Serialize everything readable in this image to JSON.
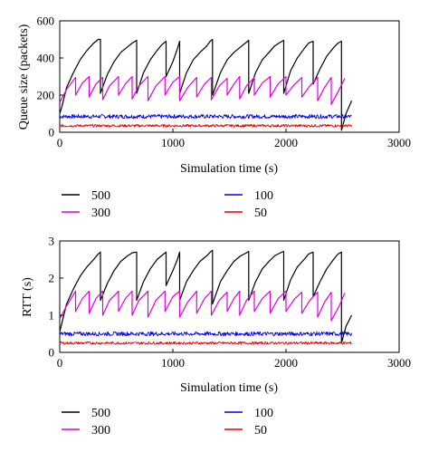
{
  "chart_data": [
    {
      "type": "line",
      "title": "",
      "xlabel": "Simulation time (s)",
      "ylabel": "Queue size (packets)",
      "xlim": [
        0,
        3000
      ],
      "ylim": [
        0,
        600
      ],
      "xticks": [
        "0",
        "1000",
        "2000",
        "3000"
      ],
      "yticks": [
        "0",
        "200",
        "400",
        "600"
      ],
      "grid": false,
      "legend_placement": "below",
      "series": [
        {
          "name": "500",
          "color": "#000000",
          "x": [
            0,
            20,
            60,
            120,
            180,
            240,
            300,
            340,
            360,
            360,
            420,
            480,
            540,
            600,
            640,
            680,
            680,
            740,
            800,
            860,
            900,
            940,
            940,
            1000,
            1040,
            1060,
            1060,
            1120,
            1180,
            1240,
            1300,
            1330,
            1350,
            1350,
            1420,
            1480,
            1540,
            1600,
            1650,
            1670,
            1670,
            1730,
            1790,
            1850,
            1900,
            1950,
            1980,
            1980,
            2040,
            2100,
            2160,
            2200,
            2240,
            2240,
            2300,
            2360,
            2420,
            2460,
            2490,
            2490,
            2530,
            2580
          ],
          "y": [
            100,
            140,
            240,
            320,
            390,
            440,
            480,
            500,
            500,
            210,
            310,
            380,
            430,
            460,
            480,
            495,
            210,
            320,
            390,
            440,
            470,
            490,
            300,
            380,
            450,
            490,
            210,
            320,
            390,
            430,
            465,
            490,
            500,
            200,
            320,
            390,
            430,
            460,
            485,
            495,
            210,
            320,
            390,
            430,
            465,
            485,
            495,
            210,
            330,
            400,
            450,
            480,
            490,
            260,
            340,
            410,
            455,
            480,
            490,
            10,
            100,
            170
          ]
        },
        {
          "name": "300",
          "color": "#e000e0",
          "x": [
            0,
            60,
            140,
            140,
            200,
            260,
            260,
            320,
            380,
            380,
            440,
            520,
            520,
            580,
            640,
            640,
            700,
            780,
            780,
            850,
            930,
            930,
            1000,
            1060,
            1060,
            1130,
            1210,
            1210,
            1280,
            1340,
            1340,
            1410,
            1480,
            1480,
            1540,
            1590,
            1590,
            1650,
            1720,
            1720,
            1790,
            1860,
            1860,
            1930,
            2000,
            2000,
            2070,
            2140,
            2140,
            2210,
            2280,
            2280,
            2340,
            2400,
            2400,
            2470,
            2520
          ],
          "y": [
            160,
            230,
            295,
            200,
            265,
            300,
            190,
            260,
            295,
            175,
            250,
            300,
            200,
            260,
            300,
            180,
            250,
            300,
            170,
            250,
            300,
            200,
            270,
            300,
            170,
            240,
            295,
            190,
            260,
            295,
            175,
            250,
            290,
            200,
            260,
            300,
            180,
            250,
            295,
            200,
            265,
            300,
            190,
            260,
            300,
            200,
            255,
            295,
            190,
            250,
            295,
            170,
            240,
            295,
            150,
            230,
            290
          ]
        },
        {
          "name": "100",
          "color": "#0000ee",
          "x": [
            0,
            2580
          ],
          "y": [
            85,
            85
          ]
        },
        {
          "name": "50",
          "color": "#ee0000",
          "x": [
            0,
            2580
          ],
          "y": [
            35,
            35
          ]
        }
      ]
    },
    {
      "type": "line",
      "title": "",
      "xlabel": "Simulation time (s)",
      "ylabel": "RTT (s)",
      "xlim": [
        0,
        3000
      ],
      "ylim": [
        0,
        3
      ],
      "xticks": [
        "0",
        "1000",
        "2000",
        "3000"
      ],
      "yticks": [
        "0",
        "1",
        "2",
        "3"
      ],
      "grid": false,
      "legend_placement": "below",
      "series": [
        {
          "name": "500",
          "color": "#000000",
          "x": [
            0,
            20,
            60,
            120,
            180,
            240,
            300,
            340,
            360,
            360,
            420,
            480,
            540,
            600,
            640,
            680,
            680,
            740,
            800,
            860,
            900,
            940,
            940,
            1000,
            1040,
            1060,
            1060,
            1120,
            1180,
            1240,
            1300,
            1330,
            1350,
            1350,
            1420,
            1480,
            1540,
            1600,
            1650,
            1670,
            1670,
            1730,
            1790,
            1850,
            1900,
            1950,
            1980,
            1980,
            2040,
            2100,
            2160,
            2200,
            2240,
            2240,
            2300,
            2360,
            2420,
            2460,
            2490,
            2490,
            2530,
            2580
          ],
          "y": [
            0.55,
            0.8,
            1.3,
            1.7,
            2.05,
            2.3,
            2.5,
            2.65,
            2.7,
            1.4,
            1.85,
            2.2,
            2.45,
            2.6,
            2.68,
            2.7,
            1.4,
            1.9,
            2.25,
            2.5,
            2.6,
            2.7,
            1.8,
            2.2,
            2.5,
            2.7,
            1.4,
            1.9,
            2.2,
            2.45,
            2.6,
            2.7,
            2.75,
            1.3,
            1.9,
            2.2,
            2.45,
            2.6,
            2.68,
            2.72,
            1.4,
            1.9,
            2.25,
            2.45,
            2.6,
            2.68,
            2.72,
            1.4,
            1.95,
            2.3,
            2.5,
            2.65,
            2.7,
            1.5,
            1.9,
            2.25,
            2.5,
            2.65,
            2.7,
            0.25,
            0.7,
            1.0
          ]
        },
        {
          "name": "300",
          "color": "#e000e0",
          "x": [
            0,
            60,
            140,
            140,
            200,
            260,
            260,
            320,
            380,
            380,
            440,
            520,
            520,
            580,
            640,
            640,
            700,
            780,
            780,
            850,
            930,
            930,
            1000,
            1060,
            1060,
            1130,
            1210,
            1210,
            1280,
            1340,
            1340,
            1410,
            1480,
            1480,
            1540,
            1590,
            1590,
            1650,
            1720,
            1720,
            1790,
            1860,
            1860,
            1930,
            2000,
            2000,
            2070,
            2140,
            2140,
            2210,
            2280,
            2280,
            2340,
            2400,
            2400,
            2470,
            2520
          ],
          "y": [
            0.9,
            1.25,
            1.65,
            1.1,
            1.45,
            1.65,
            1.05,
            1.45,
            1.65,
            1.0,
            1.4,
            1.65,
            1.1,
            1.45,
            1.65,
            1.0,
            1.4,
            1.65,
            0.95,
            1.4,
            1.65,
            1.1,
            1.5,
            1.65,
            0.95,
            1.35,
            1.65,
            1.05,
            1.45,
            1.65,
            1.0,
            1.4,
            1.62,
            1.1,
            1.45,
            1.65,
            1.0,
            1.4,
            1.65,
            1.1,
            1.45,
            1.65,
            1.05,
            1.45,
            1.65,
            1.1,
            1.42,
            1.62,
            1.05,
            1.4,
            1.62,
            0.95,
            1.35,
            1.62,
            0.85,
            1.25,
            1.6
          ]
        },
        {
          "name": "100",
          "color": "#0000ee",
          "x": [
            0,
            2580
          ],
          "y": [
            0.5,
            0.5
          ]
        },
        {
          "name": "50",
          "color": "#ee0000",
          "x": [
            0,
            2580
          ],
          "y": [
            0.25,
            0.25
          ]
        }
      ]
    }
  ]
}
